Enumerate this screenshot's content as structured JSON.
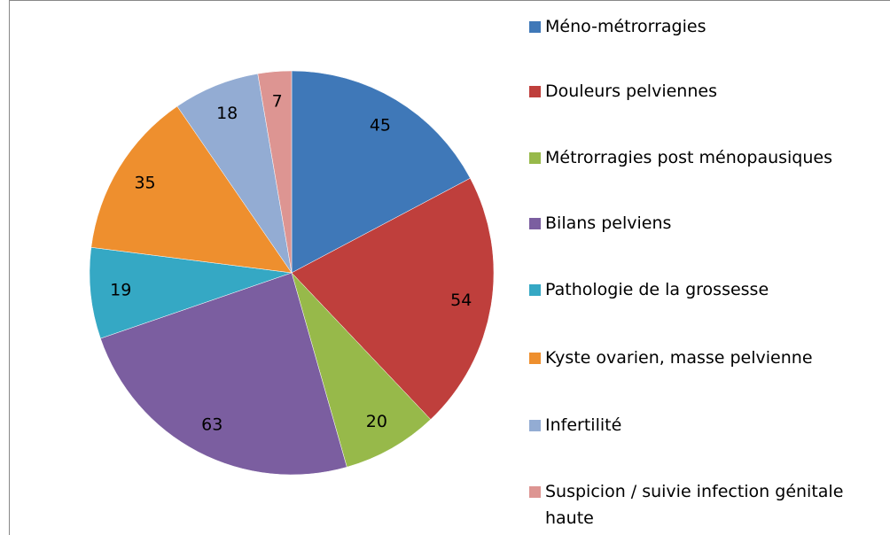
{
  "chart_data": {
    "type": "pie",
    "categories": [
      "Méno-métrorragies",
      "Douleurs pelviennes",
      "Métrorragies post ménopausiques",
      "Bilans pelviens",
      "Pathologie de la grossesse",
      "Kyste ovarien, masse pelvienne",
      "Infertilité",
      "Suspicion / suivie infection génitale haute"
    ],
    "values": [
      45,
      54,
      20,
      63,
      19,
      35,
      18,
      7
    ],
    "colors": [
      "#3f78b8",
      "#bf3f3c",
      "#97b94a",
      "#7b5ea0",
      "#35a8c4",
      "#ee8f2e",
      "#93acd3",
      "#dd9592"
    ],
    "legend": "right"
  }
}
